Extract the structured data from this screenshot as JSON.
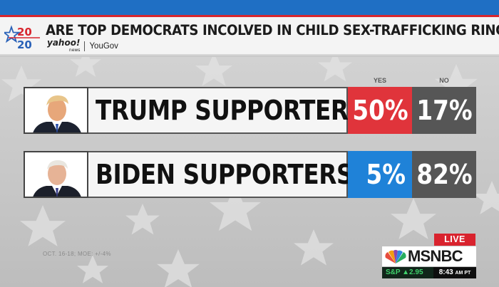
{
  "header": {
    "logo_top": "20",
    "logo_bottom": "20",
    "headline": "ARE TOP DEMOCRATS INCOLVED IN CHILD SEX-TRAFFICKING RINGS:",
    "source_yahoo": "yahoo!",
    "source_yahoo_sub": "news",
    "source_yougov": "YouGov"
  },
  "columns": {
    "yes": "YES",
    "no": "NO"
  },
  "rows": [
    {
      "label": "TRUMP SUPPORTERS",
      "yes": "50%",
      "no": "17%",
      "yes_color": "#e0343b"
    },
    {
      "label": "BIDEN SUPPORTERS",
      "yes": "5%",
      "no": "82%",
      "yes_color": "#1f82d8"
    }
  ],
  "footnote": "OCT. 16-18; MOE: +/-4%",
  "bug": {
    "live": "LIVE",
    "network": "MSNBC",
    "market": "S&P ▲2.95",
    "time": "8:43",
    "ampm": "AM PT"
  },
  "colors": {
    "no_gray": "#565656",
    "live_red": "#d9232e",
    "top_blue": "#1f6fc4"
  }
}
